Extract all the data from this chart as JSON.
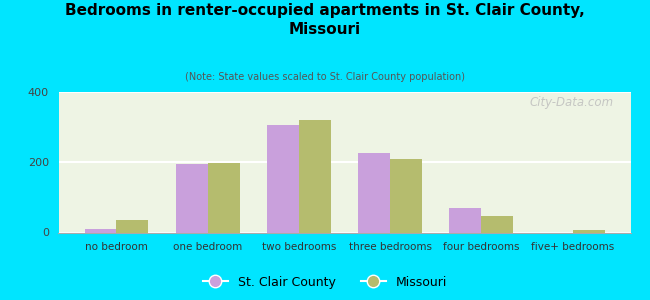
{
  "title": "Bedrooms in renter-occupied apartments in St. Clair County,\nMissouri",
  "subtitle": "(Note: State values scaled to St. Clair County population)",
  "categories": [
    "no bedroom",
    "one bedroom",
    "two bedrooms",
    "three bedrooms",
    "four bedrooms",
    "five+ bedrooms"
  ],
  "st_clair_values": [
    10,
    195,
    305,
    225,
    70,
    0
  ],
  "missouri_values": [
    35,
    198,
    320,
    208,
    48,
    8
  ],
  "st_clair_color": "#c9a0dc",
  "missouri_color": "#b5bc6e",
  "background_outer": "#00e5ff",
  "ylim": [
    0,
    400
  ],
  "yticks": [
    0,
    200,
    400
  ],
  "bar_width": 0.35,
  "watermark": "City-Data.com",
  "legend_labels": [
    "St. Clair County",
    "Missouri"
  ]
}
